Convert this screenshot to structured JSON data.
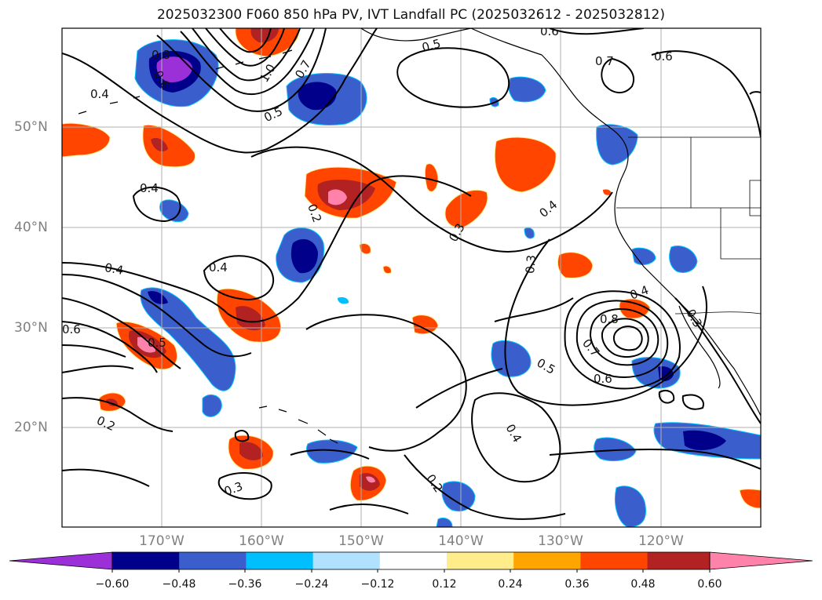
{
  "title": "2025032300 F060 850 hPa PV, IVT Landfall PC (2025032612 - 2025032812)",
  "lat_labels": [
    "50°N",
    "40°N",
    "30°N",
    "20°N"
  ],
  "lon_labels": [
    "170°W",
    "160°W",
    "150°W",
    "140°W",
    "130°W",
    "120°W"
  ],
  "colorbar": {
    "ticks": [
      "−0.60",
      "−0.48",
      "−0.36",
      "−0.24",
      "−0.12",
      "0.12",
      "0.24",
      "0.36",
      "0.48",
      "0.60"
    ],
    "colors": [
      "#9b30d9",
      "#00008b",
      "#3a5fcd",
      "#00bfff",
      "#b0e2ff",
      "#ffffff",
      "#ffec8b",
      "#ffa500",
      "#ff4500",
      "#b22222",
      "#ff82ab",
      "#ff82ab"
    ]
  },
  "contour_labels": [
    "0.6",
    "0.5",
    "0.7",
    "0.6",
    "0.4",
    "0.8",
    "0.5",
    "0.4",
    "0.2",
    "0.3",
    "0.4",
    "0.3",
    "0.4",
    "0.4",
    "0.4",
    "0.8",
    "0.3",
    "0.7",
    "0.6",
    "0.5",
    "0.5",
    "0.6",
    "0.2",
    "0.4",
    "0.2",
    "0.3",
    "0.6",
    "1.0",
    "0.7"
  ]
}
